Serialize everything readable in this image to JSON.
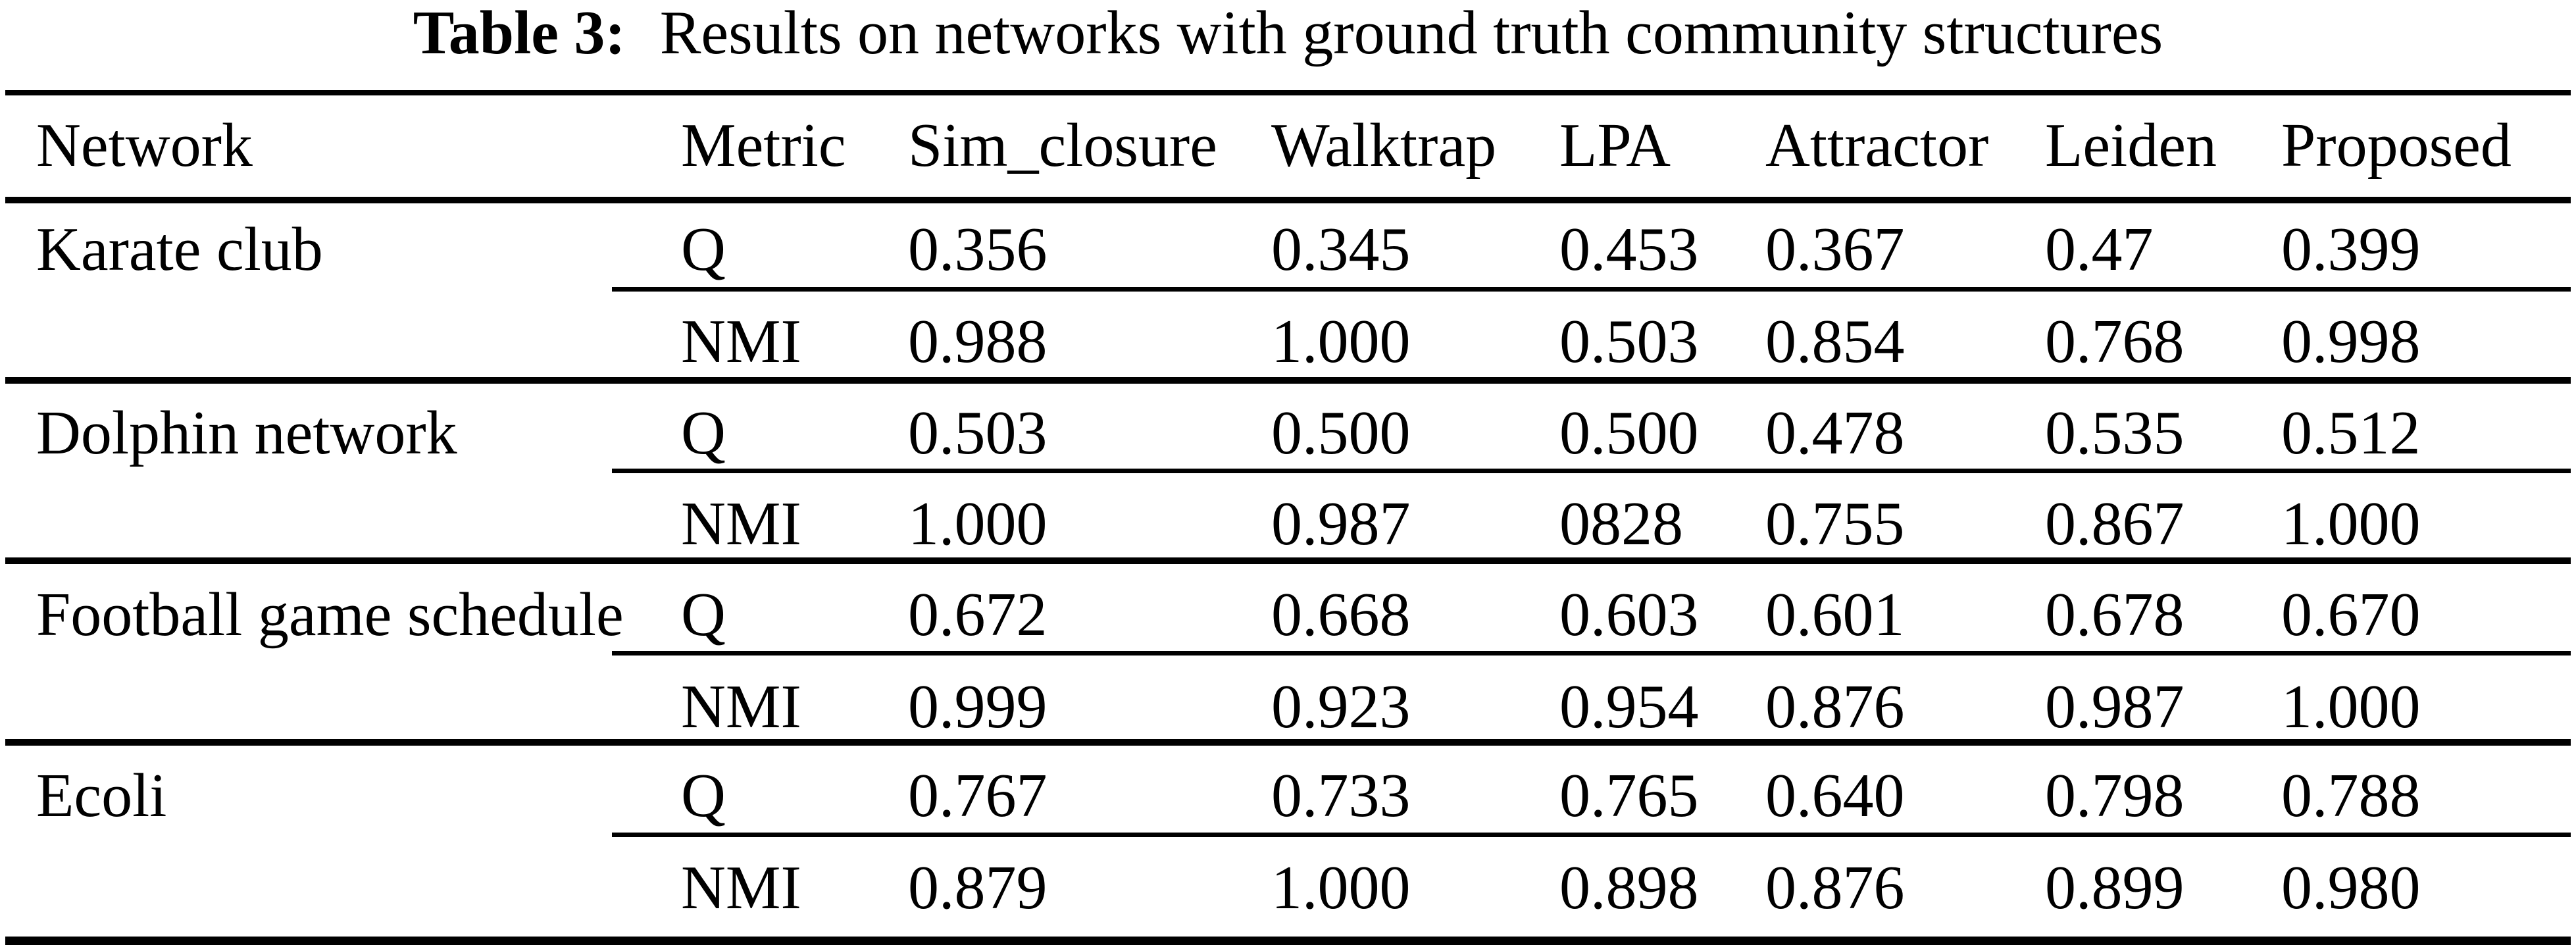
{
  "caption": {
    "label": "Table 3:",
    "text": "Results on networks with ground truth community structures"
  },
  "table": {
    "headers": [
      "Network",
      "Metric",
      "Sim_closure",
      "Walktrap",
      "LPA",
      "Attractor",
      "Leiden",
      "Proposed"
    ],
    "groups": [
      {
        "network": "Karate club",
        "rows": [
          {
            "metric": "Q",
            "values": [
              "0.356",
              "0.345",
              "0.453",
              "0.367",
              "0.47",
              "0.399"
            ]
          },
          {
            "metric": "NMI",
            "values": [
              "0.988",
              "1.000",
              "0.503",
              "0.854",
              "0.768",
              "0.998"
            ]
          }
        ]
      },
      {
        "network": "Dolphin network",
        "rows": [
          {
            "metric": "Q",
            "values": [
              "0.503",
              "0.500",
              "0.500",
              "0.478",
              "0.535",
              "0.512"
            ]
          },
          {
            "metric": "NMI",
            "values": [
              "1.000",
              "0.987",
              "0828",
              "0.755",
              "0.867",
              "1.000"
            ]
          }
        ]
      },
      {
        "network": "Football game schedule",
        "rows": [
          {
            "metric": "Q",
            "values": [
              "0.672",
              "0.668",
              "0.603",
              "0.601",
              "0.678",
              "0.670"
            ]
          },
          {
            "metric": "NMI",
            "values": [
              "0.999",
              "0.923",
              "0.954",
              "0.876",
              "0.987",
              "1.000"
            ]
          }
        ]
      },
      {
        "network": "Ecoli",
        "rows": [
          {
            "metric": "Q",
            "values": [
              "0.767",
              "0.733",
              "0.765",
              "0.640",
              "0.798",
              "0.788"
            ]
          },
          {
            "metric": "NMI",
            "values": [
              "0.879",
              "1.000",
              "0.898",
              "0.876",
              "0.899",
              "0.980"
            ]
          }
        ]
      }
    ]
  },
  "colors": {
    "text": "#000000",
    "background": "#ffffff",
    "rule": "#000000"
  }
}
